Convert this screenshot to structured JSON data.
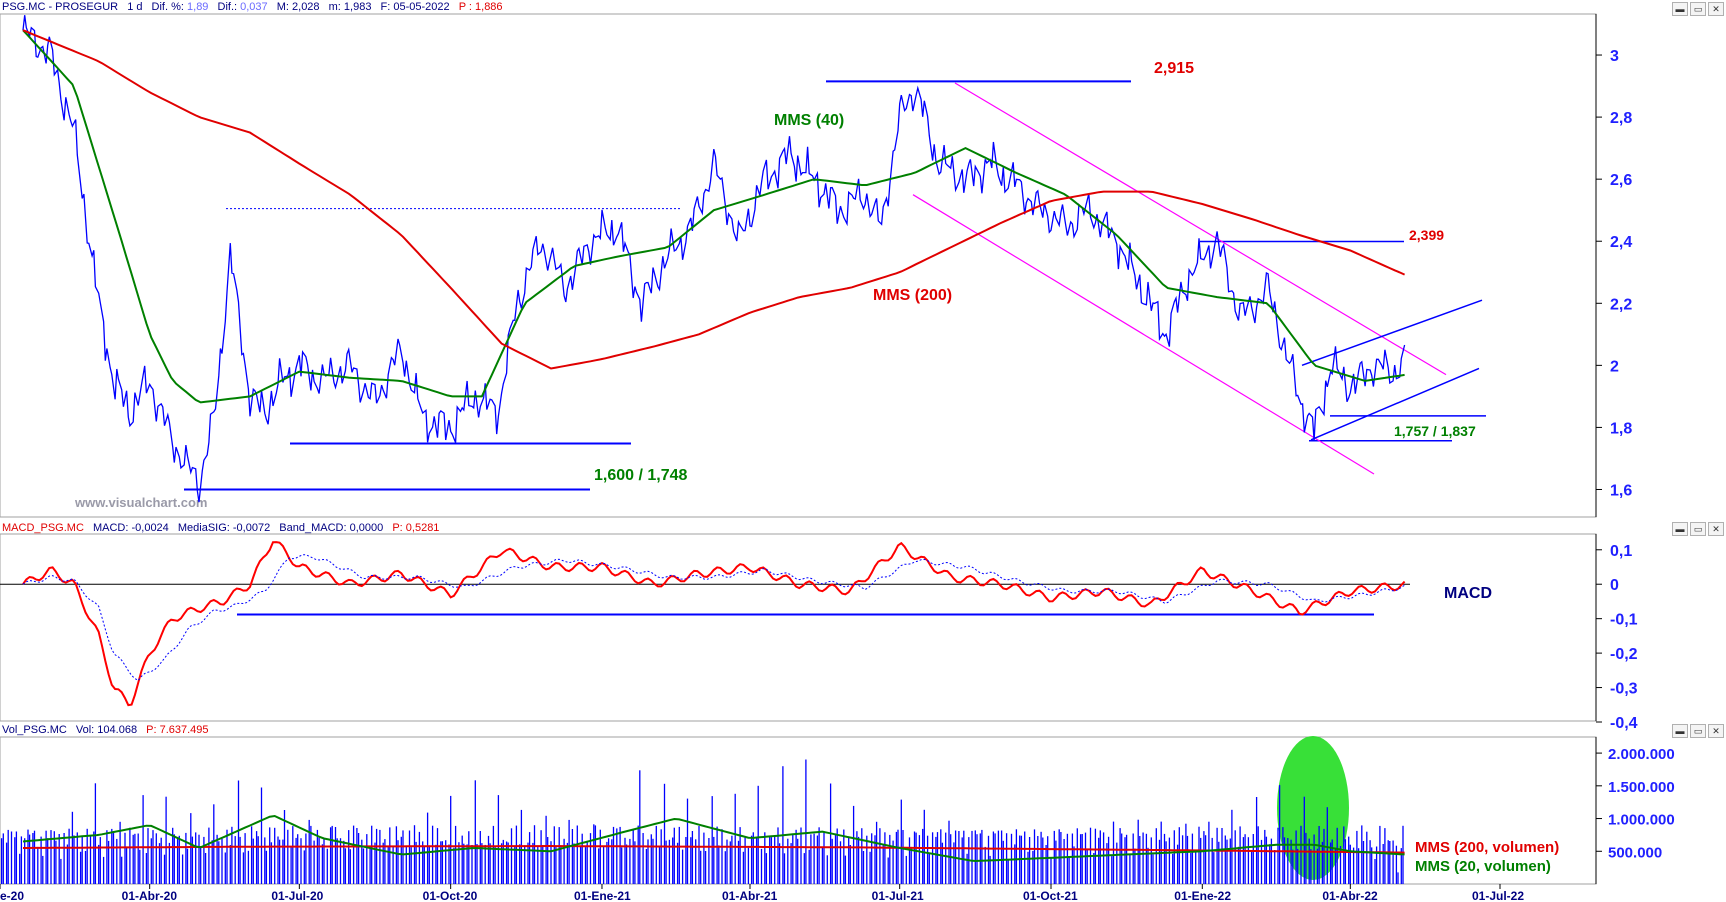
{
  "price_panel": {
    "header": {
      "ticker": "PSG.MC - PROSEGUR",
      "interval": "1 d",
      "dif_pct_label": "Dif. %:",
      "dif_pct": "1,89",
      "dif_label": "Dif.:",
      "dif": "0,037",
      "max_label": "M:",
      "max": "2,028",
      "min_label": "m:",
      "min": "1,983",
      "date_label": "F:",
      "date": "05-05-2022",
      "price_label": "P :",
      "price": "1,886"
    },
    "watermark": "www.visualchart.com",
    "y_ticks": [
      "3",
      "2,8",
      "2,6",
      "2,4",
      "2,2",
      "2",
      "1,8",
      "1,6"
    ],
    "annotations": {
      "high_label": "2,915",
      "mid_high_label": "2,399",
      "support_label": "1,600 / 1,748",
      "recent_support_label": "1,757 / 1,837",
      "mms40_label": "MMS (40)",
      "mms200_label": "MMS (200)"
    }
  },
  "macd_panel": {
    "header": {
      "name": "MACD_PSG.MC",
      "macd_label": "MACD:",
      "macd": "-0,0024",
      "signal_label": "MediaSIG:",
      "signal": "-0,0072",
      "band_label": "Band_MACD:",
      "band": "0,0000",
      "p_label": "P:",
      "p": "0,5281"
    },
    "title": "MACD",
    "y_ticks": [
      "0,1",
      "0",
      "-0,1",
      "-0,2",
      "-0,3",
      "-0,4"
    ]
  },
  "volume_panel": {
    "header": {
      "name": "Vol_PSG.MC",
      "vol_label": "Vol:",
      "vol": "104.068",
      "p_label": "P:",
      "p": "7.637.495"
    },
    "y_ticks": [
      "2.000.000",
      "1.500.000",
      "1.000.000",
      "500.000"
    ],
    "legend_200": "MMS (200, volumen)",
    "legend_20": "MMS (20, volumen)"
  },
  "x_axis_labels": [
    "e-20",
    "01-Abr-20",
    "01-Jul-20",
    "01-Oct-20",
    "01-Ene-21",
    "01-Abr-21",
    "01-Jul-21",
    "01-Oct-21",
    "01-Ene-22",
    "01-Abr-22",
    "01-Jul-22"
  ],
  "colors": {
    "price": "#0000ff",
    "mms40": "#008000",
    "mms200": "#e00000",
    "channel": "#ff00ff",
    "macd": "#ff0000",
    "signal": "#0000ff",
    "volume": "#0000ff",
    "highlight": "#22dd22"
  },
  "chart_data": [
    {
      "type": "line",
      "panel": "price",
      "y_unit": "EUR",
      "ylim": [
        1.55,
        3.1
      ],
      "series": [
        {
          "x": [
            "2020-01-15",
            "2020-02-01",
            "2020-02-15",
            "2020-03-01",
            "2020-03-10",
            "2020-03-20",
            "2020-04-01",
            "2020-04-15",
            "2020-05-01",
            "2020-05-10",
            "2020-05-20",
            "2020-06-01",
            "2020-06-10",
            "2020-06-20",
            "2020-07-01",
            "2020-07-15",
            "2020-08-01",
            "2020-08-15",
            "2020-09-01",
            "2020-09-15",
            "2020-10-01",
            "2020-10-15",
            "2020-10-30",
            "2020-11-10",
            "2020-11-25",
            "2020-12-10",
            "2020-12-25",
            "2021-01-10",
            "2021-01-25",
            "2021-02-10",
            "2021-02-25",
            "2021-03-10",
            "2021-03-25",
            "2021-04-10",
            "2021-04-25",
            "2021-05-10",
            "2021-05-25",
            "2021-06-10",
            "2021-06-20",
            "2021-07-01",
            "2021-07-10",
            "2021-07-25",
            "2021-08-10",
            "2021-08-25",
            "2021-09-10",
            "2021-09-25",
            "2021-10-10",
            "2021-10-25",
            "2021-11-10",
            "2021-11-25",
            "2021-12-10",
            "2021-12-25",
            "2022-01-10",
            "2022-01-25",
            "2022-02-10",
            "2022-02-20",
            "2022-03-01",
            "2022-03-10",
            "2022-03-20",
            "2022-04-01",
            "2022-04-15",
            "2022-04-25",
            "2022-05-05"
          ],
          "values": [
            3.08,
            3.0,
            2.75,
            2.2,
            1.95,
            1.85,
            1.95,
            1.75,
            1.62,
            1.82,
            2.35,
            1.9,
            1.85,
            1.95,
            2.0,
            1.95,
            2.0,
            1.88,
            2.05,
            1.82,
            1.8,
            1.9,
            1.85,
            2.2,
            2.4,
            2.25,
            2.4,
            2.45,
            2.2,
            2.35,
            2.45,
            2.65,
            2.4,
            2.6,
            2.68,
            2.6,
            2.5,
            2.55,
            2.45,
            2.8,
            2.9,
            2.65,
            2.6,
            2.65,
            2.58,
            2.5,
            2.45,
            2.5,
            2.4,
            2.25,
            2.1,
            2.3,
            2.4,
            2.15,
            2.25,
            2.05,
            1.9,
            1.78,
            2.0,
            1.93,
            2.0,
            1.98,
            2.01
          ]
        },
        {
          "name": "MMS (40)",
          "x": [
            "2020-01-15",
            "2020-02-15",
            "2020-03-15",
            "2020-04-01",
            "2020-04-15",
            "2020-05-01",
            "2020-06-01",
            "2020-07-01",
            "2020-08-01",
            "2020-09-01",
            "2020-10-01",
            "2020-10-20",
            "2020-11-15",
            "2020-12-15",
            "2021-01-10",
            "2021-02-10",
            "2021-03-10",
            "2021-04-10",
            "2021-05-10",
            "2021-06-10",
            "2021-07-10",
            "2021-08-10",
            "2021-09-10",
            "2021-10-10",
            "2021-11-10",
            "2021-12-10",
            "2022-01-10",
            "2022-02-10",
            "2022-03-10",
            "2022-04-10",
            "2022-05-05"
          ],
          "values": [
            3.08,
            2.9,
            2.4,
            2.1,
            1.95,
            1.88,
            1.9,
            1.98,
            1.96,
            1.95,
            1.9,
            1.9,
            2.2,
            2.32,
            2.35,
            2.38,
            2.5,
            2.55,
            2.6,
            2.58,
            2.62,
            2.7,
            2.62,
            2.55,
            2.42,
            2.25,
            2.22,
            2.2,
            2.0,
            1.95,
            1.97
          ]
        },
        {
          "name": "MMS (200)",
          "x": [
            "2020-01-15",
            "2020-03-01",
            "2020-04-01",
            "2020-05-01",
            "2020-06-01",
            "2020-07-01",
            "2020-08-01",
            "2020-09-01",
            "2020-10-01",
            "2020-11-01",
            "2020-12-01",
            "2021-01-01",
            "2021-02-01",
            "2021-03-01",
            "2021-04-01",
            "2021-05-01",
            "2021-06-01",
            "2021-07-01",
            "2021-08-01",
            "2021-09-01",
            "2021-10-01",
            "2021-11-01",
            "2021-12-01",
            "2022-01-01",
            "2022-02-01",
            "2022-03-01",
            "2022-04-01",
            "2022-05-05"
          ],
          "values": [
            3.08,
            2.98,
            2.88,
            2.8,
            2.75,
            2.65,
            2.55,
            2.42,
            2.25,
            2.07,
            1.99,
            2.02,
            2.06,
            2.1,
            2.17,
            2.22,
            2.25,
            2.3,
            2.38,
            2.46,
            2.53,
            2.56,
            2.56,
            2.52,
            2.47,
            2.42,
            2.37,
            2.29
          ]
        }
      ]
    },
    {
      "type": "line",
      "panel": "macd",
      "ylim": [
        -0.4,
        0.14
      ],
      "series": [
        {
          "name": "MACD",
          "x": [
            "2020-01-15",
            "2020-02-01",
            "2020-02-15",
            "2020-03-01",
            "2020-03-10",
            "2020-03-20",
            "2020-04-01",
            "2020-04-15",
            "2020-05-01",
            "2020-05-15",
            "2020-06-01",
            "2020-06-15",
            "2020-07-01",
            "2020-08-01",
            "2020-09-01",
            "2020-10-01",
            "2020-11-01",
            "2020-12-01",
            "2021-01-01",
            "2021-02-01",
            "2021-03-01",
            "2021-04-01",
            "2021-05-01",
            "2021-06-01",
            "2021-07-01",
            "2021-08-01",
            "2021-09-01",
            "2021-10-01",
            "2021-11-01",
            "2021-12-01",
            "2022-01-01",
            "2022-02-01",
            "2022-03-01",
            "2022-04-01",
            "2022-05-05"
          ],
          "values": [
            0.0,
            0.04,
            0.0,
            -0.15,
            -0.3,
            -0.35,
            -0.2,
            -0.1,
            -0.07,
            -0.05,
            0.0,
            0.13,
            0.05,
            0.0,
            0.03,
            -0.03,
            0.1,
            0.05,
            0.05,
            0.0,
            0.03,
            0.05,
            0.0,
            -0.02,
            0.11,
            0.02,
            0.0,
            -0.04,
            -0.02,
            -0.06,
            0.04,
            -0.02,
            -0.08,
            -0.02,
            -0.002
          ]
        },
        {
          "name": "MediaSIG",
          "x": [
            "2020-01-15",
            "2020-02-01",
            "2020-02-15",
            "2020-03-01",
            "2020-03-10",
            "2020-03-25",
            "2020-04-10",
            "2020-04-25",
            "2020-05-10",
            "2020-05-25",
            "2020-06-10",
            "2020-06-25",
            "2020-07-10",
            "2020-08-10",
            "2020-09-10",
            "2020-10-10",
            "2020-11-10",
            "2020-12-10",
            "2021-01-10",
            "2021-02-10",
            "2021-03-10",
            "2021-04-10",
            "2021-05-10",
            "2021-06-10",
            "2021-07-10",
            "2021-08-10",
            "2021-09-10",
            "2021-10-10",
            "2021-11-10",
            "2021-12-10",
            "2022-01-10",
            "2022-02-10",
            "2022-03-10",
            "2022-04-10",
            "2022-05-05"
          ],
          "values": [
            0.0,
            0.02,
            0.01,
            -0.07,
            -0.2,
            -0.28,
            -0.22,
            -0.13,
            -0.08,
            -0.06,
            -0.02,
            0.08,
            0.08,
            0.02,
            0.02,
            -0.01,
            0.05,
            0.07,
            0.05,
            0.02,
            0.02,
            0.04,
            0.01,
            -0.01,
            0.07,
            0.05,
            0.01,
            -0.02,
            -0.02,
            -0.05,
            0.01,
            0.0,
            -0.05,
            -0.03,
            -0.007
          ]
        }
      ]
    },
    {
      "type": "bar",
      "panel": "volume",
      "ylim": [
        0,
        2200000
      ],
      "series": [
        {
          "name": "Vol",
          "x": [
            "2020-02-01",
            "2020-03-01",
            "2020-03-15",
            "2020-04-01",
            "2020-05-01",
            "2020-06-01",
            "2020-06-15",
            "2020-07-15",
            "2020-09-01",
            "2020-10-15",
            "2020-11-15",
            "2021-01-10",
            "2021-01-25",
            "2021-02-20",
            "2021-04-01",
            "2021-05-01",
            "2021-06-15",
            "2021-07-01",
            "2021-08-15",
            "2021-10-01",
            "2021-11-15",
            "2022-01-01",
            "2022-02-20",
            "2022-03-01",
            "2022-03-10",
            "2022-04-01",
            "2022-05-05"
          ],
          "values": [
            700000,
            1600000,
            900000,
            1500000,
            1000000,
            1750000,
            1200000,
            900000,
            800000,
            1600000,
            1100000,
            850000,
            1800000,
            1300000,
            1400000,
            2000000,
            900000,
            1300000,
            800000,
            700000,
            1000000,
            900000,
            1550000,
            1250000,
            1500000,
            600000,
            104068
          ]
        },
        {
          "name": "MMS (200, volumen)",
          "x": [
            "2020-01-15",
            "2020-06-01",
            "2020-12-01",
            "2021-06-01",
            "2021-12-01",
            "2022-05-05"
          ],
          "values": [
            550000,
            570000,
            580000,
            560000,
            520000,
            480000
          ]
        },
        {
          "name": "MMS (20, volumen)",
          "x": [
            "2020-01-15",
            "2020-03-01",
            "2020-04-01",
            "2020-05-01",
            "2020-06-15",
            "2020-07-15",
            "2020-09-01",
            "2020-10-15",
            "2020-12-01",
            "2021-01-15",
            "2021-02-15",
            "2021-04-01",
            "2021-05-15",
            "2021-07-01",
            "2021-08-15",
            "2021-10-01",
            "2021-11-15",
            "2022-01-01",
            "2022-02-15",
            "2022-03-10",
            "2022-04-01",
            "2022-05-05"
          ],
          "values": [
            650000,
            750000,
            900000,
            550000,
            1050000,
            700000,
            450000,
            550000,
            500000,
            800000,
            1000000,
            700000,
            800000,
            550000,
            350000,
            400000,
            450000,
            500000,
            600000,
            600000,
            500000,
            450000
          ]
        }
      ]
    }
  ]
}
